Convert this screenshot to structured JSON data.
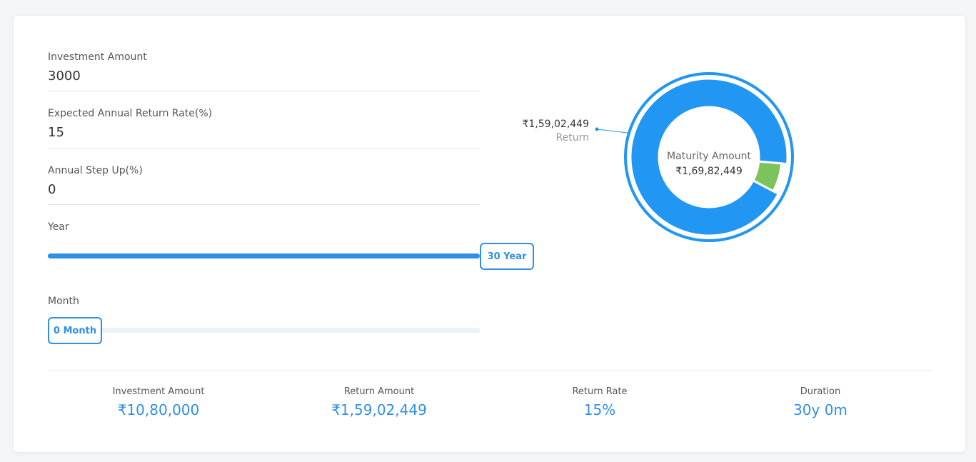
{
  "form": {
    "investment_amount": {
      "label": "Investment Amount",
      "value": "3000"
    },
    "return_rate": {
      "label": "Expected Annual Return Rate(%)",
      "value": "15"
    },
    "step_up": {
      "label": "Annual Step Up(%)",
      "value": "0"
    }
  },
  "sliders": {
    "year": {
      "label": "Year",
      "value_text": "30 Year",
      "fraction": 1.0
    },
    "month": {
      "label": "Month",
      "value_text": "0 Month",
      "fraction": 0.0
    }
  },
  "chart_data": {
    "type": "pie",
    "series": [
      {
        "value": 15902449
      },
      {
        "value": 1080000
      }
    ],
    "callout": {
      "value_text": "₹1,59,02,449",
      "label": "Return"
    },
    "center": {
      "label": "Maturity Amount",
      "value_text": "₹1,69,82,449"
    }
  },
  "summary": [
    {
      "label": "Investment Amount",
      "value": "₹10,80,000"
    },
    {
      "label": "Return Amount",
      "value": "₹1,59,02,449"
    },
    {
      "label": "Return Rate",
      "value": "15%"
    },
    {
      "label": "Duration",
      "value": "30y 0m"
    }
  ],
  "colors": {
    "accent": "#2f8fe6",
    "donut_return": "#2196f3",
    "donut_invested": "#7cc35c"
  }
}
